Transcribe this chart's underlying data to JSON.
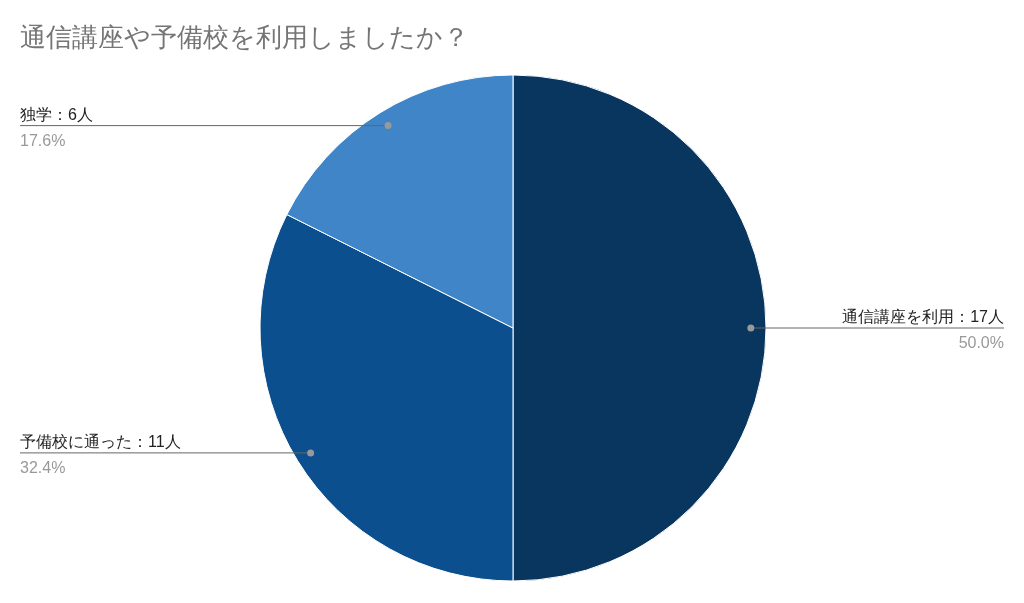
{
  "chart_data": {
    "type": "pie",
    "title": "通信講座や予備校を利用しましたか？",
    "categories": [
      "通信講座を利用：17人",
      "予備校に通った：11人",
      "独学：6人"
    ],
    "values": [
      50.0,
      32.4,
      17.6
    ],
    "colors": [
      "#08365f",
      "#0b4f8f",
      "#3f85c8"
    ],
    "value_labels": [
      "50.0%",
      "32.4%",
      "17.6%"
    ]
  }
}
